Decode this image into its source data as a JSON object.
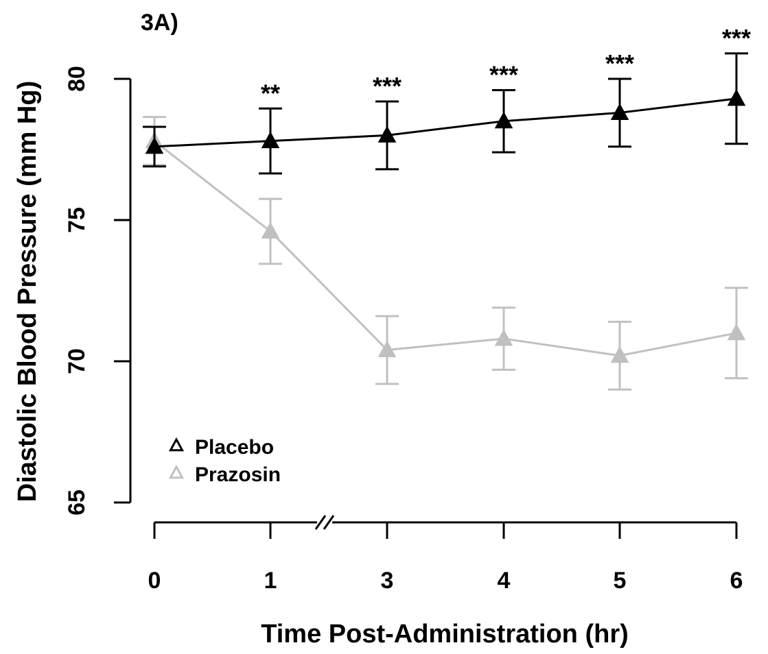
{
  "chart_data": {
    "type": "line",
    "panel_label": "3A)",
    "xlabel": "Time Post-Administration (hr)",
    "ylabel": "Diastolic Blood Pressure (mm Hg)",
    "x": [
      0,
      1,
      3,
      4,
      5,
      6
    ],
    "x_tick_labels": [
      "0",
      "1",
      "3",
      "4",
      "5",
      "6"
    ],
    "axis_break_between": [
      "1",
      "3"
    ],
    "ylim": [
      65,
      80
    ],
    "y_ticks": [
      65,
      70,
      75,
      80
    ],
    "y_tick_labels": [
      "65",
      "70",
      "75",
      "80"
    ],
    "grid": false,
    "legend_position": "bottom-left",
    "series": [
      {
        "name": "Placebo",
        "color": "#000000",
        "marker": "triangle",
        "values": [
          77.6,
          77.8,
          78.0,
          78.5,
          78.8,
          79.3
        ],
        "error": [
          0.7,
          1.15,
          1.2,
          1.1,
          1.2,
          1.6
        ]
      },
      {
        "name": "Prazosin",
        "color": "#c0c0c0",
        "marker": "triangle",
        "values": [
          77.8,
          74.6,
          70.4,
          70.8,
          70.2,
          71.0
        ],
        "error": [
          0.85,
          1.15,
          1.2,
          1.1,
          1.2,
          1.6
        ]
      }
    ],
    "significance": [
      "",
      "**",
      "***",
      "***",
      "***",
      "***"
    ]
  }
}
